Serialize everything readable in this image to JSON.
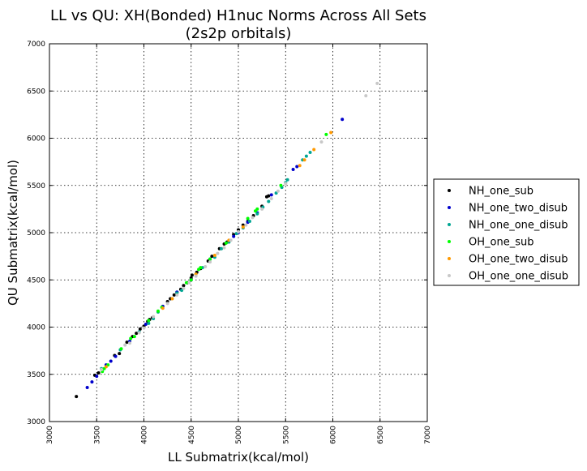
{
  "chart_data": {
    "type": "scatter",
    "title": "LL vs QU: XH(Bonded) H1nuc Norms Across All Sets",
    "subtitle": "(2s2p orbitals)",
    "xlabel": "LL Submatrix(kcal/mol)",
    "ylabel": "QU Submatrix(kcal/mol)",
    "xlim": [
      3000,
      7000
    ],
    "ylim": [
      3000,
      7000
    ],
    "xticks": [
      "3000",
      "3500",
      "4000",
      "4500",
      "5000",
      "5500",
      "6000",
      "6500",
      "7000"
    ],
    "yticks": [
      "3000",
      "3500",
      "4000",
      "4500",
      "5000",
      "5500",
      "6000",
      "6500",
      "7000"
    ],
    "grid": true,
    "legend_position": "outside-right",
    "series": [
      {
        "name": "NH_one_sub",
        "color": "#000000",
        "points": [
          [
            3285,
            3265
          ],
          [
            3480,
            3490
          ],
          [
            3520,
            3515
          ],
          [
            3690,
            3700
          ],
          [
            3740,
            3720
          ],
          [
            3820,
            3840
          ],
          [
            3880,
            3900
          ],
          [
            3920,
            3935
          ],
          [
            3960,
            3980
          ],
          [
            4000,
            4010
          ],
          [
            4040,
            4060
          ],
          [
            4060,
            4080
          ],
          [
            4090,
            4100
          ],
          [
            4250,
            4270
          ],
          [
            4280,
            4300
          ],
          [
            4320,
            4340
          ],
          [
            4350,
            4370
          ],
          [
            4390,
            4400
          ],
          [
            4420,
            4440
          ],
          [
            4460,
            4470
          ],
          [
            4500,
            4520
          ],
          [
            4510,
            4550
          ],
          [
            4560,
            4580
          ],
          [
            4600,
            4620
          ],
          [
            4680,
            4700
          ],
          [
            4720,
            4750
          ],
          [
            4800,
            4830
          ],
          [
            4850,
            4880
          ],
          [
            4880,
            4900
          ],
          [
            4950,
            4980
          ],
          [
            5000,
            5030
          ],
          [
            5050,
            5080
          ],
          [
            5100,
            5120
          ],
          [
            5160,
            5180
          ],
          [
            5250,
            5280
          ],
          [
            5300,
            5380
          ],
          [
            5320,
            5390
          ]
        ]
      },
      {
        "name": "NH_one_two_disub",
        "color": "#0000cc",
        "points": [
          [
            3400,
            3360
          ],
          [
            3450,
            3420
          ],
          [
            3500,
            3480
          ],
          [
            3600,
            3600
          ],
          [
            3650,
            3640
          ],
          [
            3700,
            3690
          ],
          [
            3850,
            3850
          ],
          [
            4020,
            4030
          ],
          [
            4200,
            4220
          ],
          [
            4350,
            4370
          ],
          [
            4500,
            4500
          ],
          [
            4700,
            4720
          ],
          [
            4950,
            4960
          ],
          [
            5000,
            5000
          ],
          [
            5100,
            5110
          ],
          [
            5200,
            5210
          ],
          [
            5350,
            5400
          ],
          [
            5580,
            5670
          ],
          [
            5620,
            5700
          ],
          [
            6100,
            6200
          ]
        ]
      },
      {
        "name": "NH_one_one_disub",
        "color": "#00a693",
        "points": [
          [
            3550,
            3560
          ],
          [
            3750,
            3760
          ],
          [
            3950,
            3950
          ],
          [
            4050,
            4040
          ],
          [
            4100,
            4090
          ],
          [
            4150,
            4160
          ],
          [
            4350,
            4360
          ],
          [
            4400,
            4390
          ],
          [
            4550,
            4560
          ],
          [
            4620,
            4630
          ],
          [
            4750,
            4740
          ],
          [
            4820,
            4830
          ],
          [
            4900,
            4900
          ],
          [
            4980,
            4990
          ],
          [
            5050,
            5050
          ],
          [
            5120,
            5120
          ],
          [
            5200,
            5200
          ],
          [
            5260,
            5270
          ],
          [
            5320,
            5330
          ],
          [
            5400,
            5420
          ],
          [
            5460,
            5480
          ],
          [
            5500,
            5530
          ],
          [
            5520,
            5560
          ],
          [
            5680,
            5770
          ],
          [
            5720,
            5810
          ],
          [
            5760,
            5850
          ]
        ]
      },
      {
        "name": "OH_one_sub",
        "color": "#00ff00",
        "points": [
          [
            3560,
            3530
          ],
          [
            3580,
            3560
          ],
          [
            3620,
            3600
          ],
          [
            3760,
            3770
          ],
          [
            3860,
            3880
          ],
          [
            3900,
            3900
          ],
          [
            4050,
            4070
          ],
          [
            4150,
            4170
          ],
          [
            4190,
            4210
          ],
          [
            4450,
            4470
          ],
          [
            4500,
            4500
          ],
          [
            4580,
            4610
          ],
          [
            4600,
            4630
          ],
          [
            4700,
            4720
          ],
          [
            4870,
            4890
          ],
          [
            5100,
            5150
          ],
          [
            5180,
            5230
          ],
          [
            5200,
            5250
          ],
          [
            5450,
            5500
          ],
          [
            5930,
            6040
          ]
        ]
      },
      {
        "name": "OH_one_two_disub",
        "color": "#ff9900",
        "points": [
          [
            3600,
            3580
          ],
          [
            4200,
            4200
          ],
          [
            4300,
            4300
          ],
          [
            4550,
            4560
          ],
          [
            4750,
            4760
          ],
          [
            4900,
            4920
          ],
          [
            5050,
            5060
          ],
          [
            5650,
            5710
          ],
          [
            5700,
            5770
          ],
          [
            5800,
            5880
          ],
          [
            5980,
            6060
          ]
        ]
      },
      {
        "name": "OH_one_one_disub",
        "color": "#c8c8c8",
        "points": [
          [
            3550,
            3550
          ],
          [
            3800,
            3810
          ],
          [
            3850,
            3830
          ],
          [
            3950,
            3940
          ],
          [
            4000,
            3990
          ],
          [
            4100,
            4110
          ],
          [
            4250,
            4250
          ],
          [
            4350,
            4340
          ],
          [
            4420,
            4410
          ],
          [
            4480,
            4470
          ],
          [
            4550,
            4540
          ],
          [
            4650,
            4640
          ],
          [
            4700,
            4690
          ],
          [
            4780,
            4780
          ],
          [
            4850,
            4840
          ],
          [
            4920,
            4920
          ],
          [
            5000,
            5010
          ],
          [
            5080,
            5080
          ],
          [
            5150,
            5160
          ],
          [
            5250,
            5250
          ],
          [
            5350,
            5360
          ],
          [
            5420,
            5440
          ],
          [
            5500,
            5520
          ],
          [
            5880,
            5960
          ],
          [
            6350,
            6450
          ],
          [
            6470,
            6580
          ]
        ]
      }
    ]
  }
}
